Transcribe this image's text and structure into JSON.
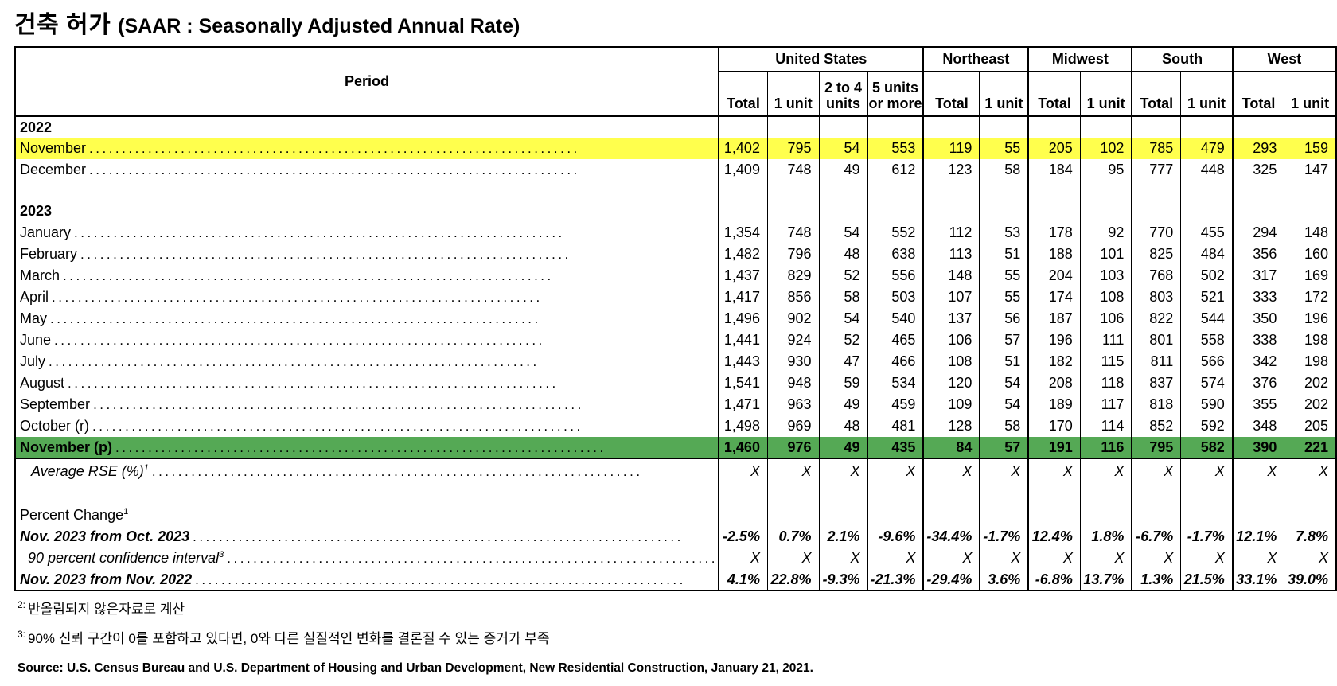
{
  "title": {
    "main": "건축 허가",
    "sub": "(SAAR : Seasonally Adjusted Annual Rate)"
  },
  "colors": {
    "highlight_yellow": "#FFFF4D",
    "highlight_green": "#55A955",
    "border": "#000000"
  },
  "table": {
    "period_header": "Period",
    "groups": [
      {
        "label": "United States",
        "sub": [
          "Total",
          "1 unit",
          "2 to 4\nunits",
          "5 units\nor more"
        ]
      },
      {
        "label": "Northeast",
        "sub": [
          "Total",
          "1 unit"
        ]
      },
      {
        "label": "Midwest",
        "sub": [
          "Total",
          "1 unit"
        ]
      },
      {
        "label": "South",
        "sub": [
          "Total",
          "1 unit"
        ]
      },
      {
        "label": "West",
        "sub": [
          "Total",
          "1 unit"
        ]
      }
    ],
    "rows": [
      {
        "type": "year",
        "label": "2022"
      },
      {
        "type": "month",
        "label": "November",
        "highlight": "yellow",
        "values": [
          "1,402",
          "795",
          "54",
          "553",
          "119",
          "55",
          "205",
          "102",
          "785",
          "479",
          "293",
          "159"
        ]
      },
      {
        "type": "month",
        "label": "December",
        "values": [
          "1,409",
          "748",
          "49",
          "612",
          "123",
          "58",
          "184",
          "95",
          "777",
          "448",
          "325",
          "147"
        ]
      },
      {
        "type": "blank"
      },
      {
        "type": "year",
        "label": "2023"
      },
      {
        "type": "month",
        "label": "January",
        "values": [
          "1,354",
          "748",
          "54",
          "552",
          "112",
          "53",
          "178",
          "92",
          "770",
          "455",
          "294",
          "148"
        ]
      },
      {
        "type": "month",
        "label": "February",
        "values": [
          "1,482",
          "796",
          "48",
          "638",
          "113",
          "51",
          "188",
          "101",
          "825",
          "484",
          "356",
          "160"
        ]
      },
      {
        "type": "month",
        "label": "March",
        "values": [
          "1,437",
          "829",
          "52",
          "556",
          "148",
          "55",
          "204",
          "103",
          "768",
          "502",
          "317",
          "169"
        ]
      },
      {
        "type": "month",
        "label": "April",
        "values": [
          "1,417",
          "856",
          "58",
          "503",
          "107",
          "55",
          "174",
          "108",
          "803",
          "521",
          "333",
          "172"
        ]
      },
      {
        "type": "month",
        "label": "May",
        "values": [
          "1,496",
          "902",
          "54",
          "540",
          "137",
          "56",
          "187",
          "106",
          "822",
          "544",
          "350",
          "196"
        ]
      },
      {
        "type": "month",
        "label": "June",
        "values": [
          "1,441",
          "924",
          "52",
          "465",
          "106",
          "57",
          "196",
          "111",
          "801",
          "558",
          "338",
          "198"
        ]
      },
      {
        "type": "month",
        "label": "July",
        "values": [
          "1,443",
          "930",
          "47",
          "466",
          "108",
          "51",
          "182",
          "115",
          "811",
          "566",
          "342",
          "198"
        ]
      },
      {
        "type": "month",
        "label": "August",
        "values": [
          "1,541",
          "948",
          "59",
          "534",
          "120",
          "54",
          "208",
          "118",
          "837",
          "574",
          "376",
          "202"
        ]
      },
      {
        "type": "month",
        "label": "September",
        "values": [
          "1,471",
          "963",
          "49",
          "459",
          "109",
          "54",
          "189",
          "117",
          "818",
          "590",
          "355",
          "202"
        ]
      },
      {
        "type": "month",
        "label": "October (r)",
        "values": [
          "1,498",
          "969",
          "48",
          "481",
          "128",
          "58",
          "170",
          "114",
          "852",
          "592",
          "348",
          "205"
        ]
      },
      {
        "type": "month",
        "label": "November (p)",
        "highlight": "green",
        "values": [
          "1,460",
          "976",
          "49",
          "435",
          "84",
          "57",
          "191",
          "116",
          "795",
          "582",
          "390",
          "221"
        ]
      },
      {
        "type": "rse",
        "label": "Average RSE (%)",
        "sup": "1",
        "values": [
          "X",
          "X",
          "X",
          "X",
          "X",
          "X",
          "X",
          "X",
          "X",
          "X",
          "X",
          "X"
        ]
      },
      {
        "type": "blank"
      },
      {
        "type": "section",
        "label": "Percent Change",
        "sup": "1"
      },
      {
        "type": "pct-bold",
        "label": "Nov. 2023 from Oct. 2023",
        "values": [
          "-2.5%",
          "0.7%",
          "2.1%",
          "-9.6%",
          "-34.4%",
          "-1.7%",
          "12.4%",
          "1.8%",
          "-6.7%",
          "-1.7%",
          "12.1%",
          "7.8%"
        ]
      },
      {
        "type": "pct-italic",
        "label": "90 percent confidence interval",
        "sup": "3",
        "values": [
          "X",
          "X",
          "X",
          "X",
          "X",
          "X",
          "X",
          "X",
          "X",
          "X",
          "X",
          "X"
        ]
      },
      {
        "type": "pct-bold",
        "label": "Nov. 2023 from Nov. 2022",
        "values": [
          "4.1%",
          "22.8%",
          "-9.3%",
          "-21.3%",
          "-29.4%",
          "3.6%",
          "-6.8%",
          "13.7%",
          "1.3%",
          "21.5%",
          "33.1%",
          "39.0%"
        ]
      }
    ]
  },
  "footnotes": [
    {
      "marker": "2:",
      "text": "반올림되지 않은자료로 계산"
    },
    {
      "marker": "3:",
      "text": "90% 신뢰 구간이 0를 포함하고 있다면, 0와 다른 실질적인 변화를 결론질 수 있는 증거가 부족"
    }
  ],
  "source": "Source: U.S. Census Bureau and U.S. Department of Housing and Urban Development, New Residential Construction, January 21, 2021."
}
